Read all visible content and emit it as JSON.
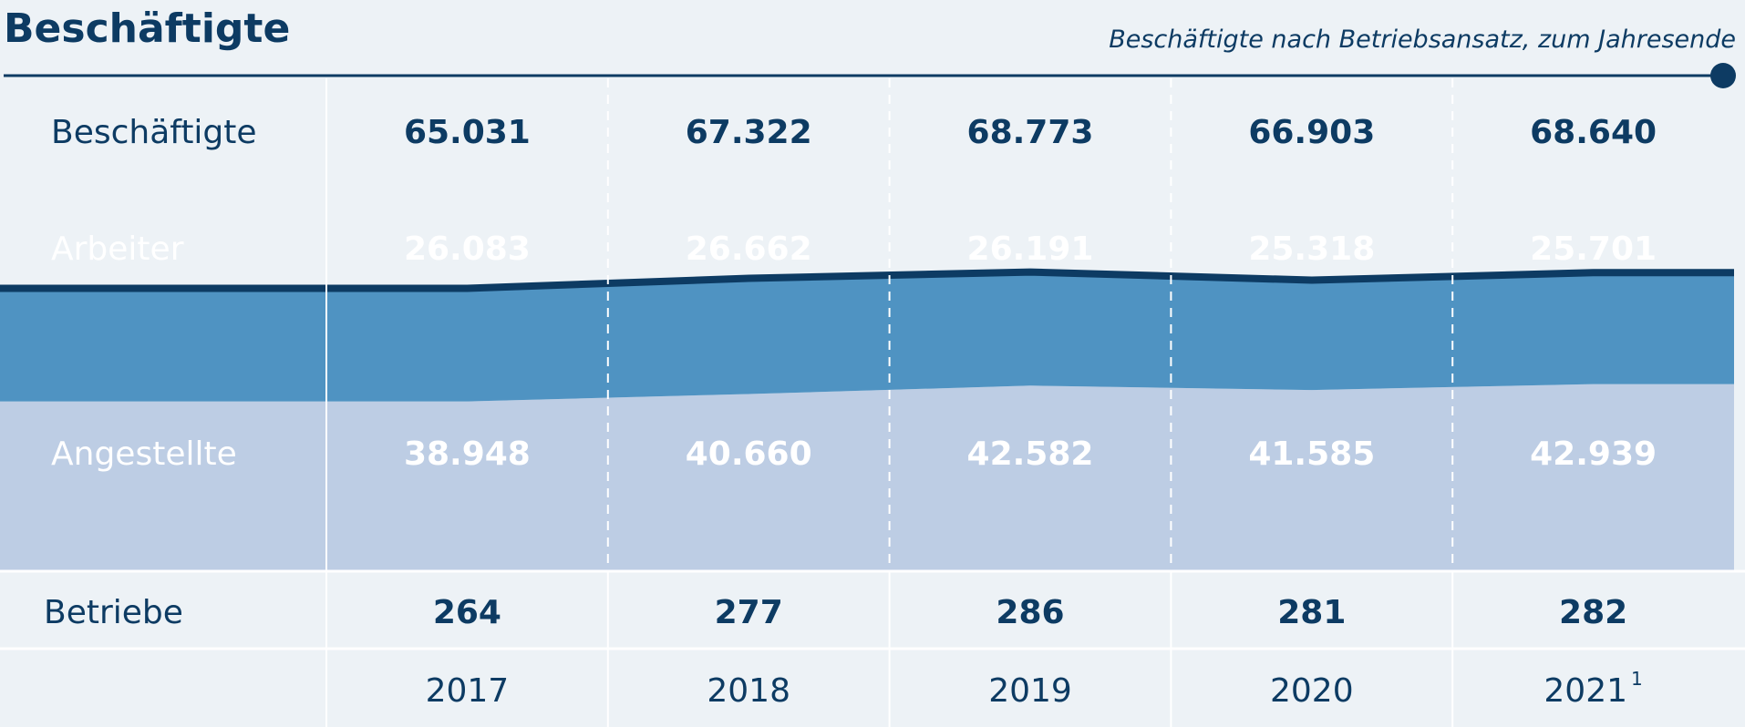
{
  "header": {
    "title": "Beschäftigte",
    "subtitle": "Beschäftigte nach Betriebsansatz, zum Jahresende"
  },
  "colors": {
    "background": "#edf2f6",
    "dark_blue": "#0d3b63",
    "arbeiter_band": "#4f93c2",
    "angestellte_band": "#bdcde4",
    "divider": "#ffffff"
  },
  "chart_data": {
    "type": "area",
    "stacked": true,
    "categories": [
      "2017",
      "2018",
      "2019",
      "2020",
      "2021"
    ],
    "category_footnotes": [
      "",
      "",
      "",
      "",
      "1"
    ],
    "series": [
      {
        "name": "Angestellte",
        "values": [
          38948,
          40660,
          42582,
          41585,
          42939
        ],
        "color": "#bdcde4"
      },
      {
        "name": "Arbeiter",
        "values": [
          26083,
          26662,
          26191,
          25318,
          25701
        ],
        "color": "#4f93c2"
      }
    ],
    "totals": {
      "name": "Beschäftigte",
      "values": [
        65031,
        67322,
        68773,
        66903,
        68640
      ]
    },
    "extra_row": {
      "name": "Betriebe",
      "values": [
        264,
        277,
        286,
        281,
        282
      ]
    },
    "value_format": "de-DE",
    "grid": "dashed-vertical"
  }
}
